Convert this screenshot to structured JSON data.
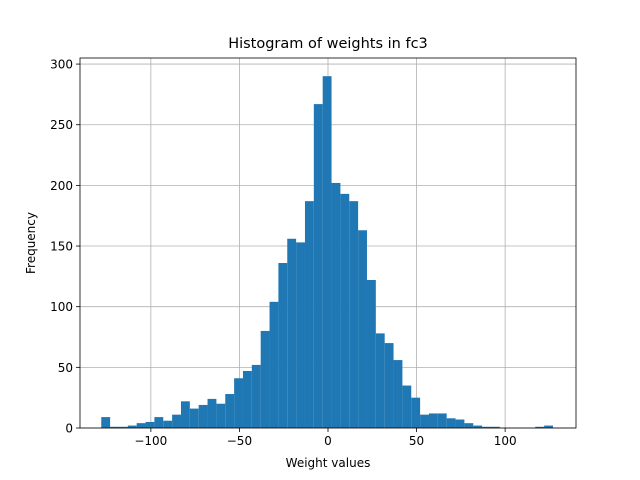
{
  "chart_data": {
    "type": "bar",
    "title": "Histogram of weights in fc3",
    "xlabel": "Weight values",
    "ylabel": "Frequency",
    "xlim": [
      -140,
      140
    ],
    "ylim": [
      0,
      305
    ],
    "xticks": [
      -100,
      -50,
      0,
      50,
      100
    ],
    "xtick_labels": [
      "−100",
      "−50",
      "0",
      "50",
      "100"
    ],
    "yticks": [
      0,
      50,
      100,
      150,
      200,
      250,
      300
    ],
    "ytick_labels": [
      "0",
      "50",
      "100",
      "150",
      "200",
      "250",
      "300"
    ],
    "grid": true,
    "bar_color": "#1f77b4",
    "bin_edges": [
      -128,
      -123,
      -118,
      -113,
      -108,
      -103,
      -98,
      -93,
      -88,
      -83,
      -78,
      -73,
      -68,
      -63,
      -58,
      -53,
      -48,
      -43,
      -38,
      -33,
      -28,
      -23,
      -18,
      -13,
      -8,
      -3,
      2,
      7,
      12,
      17,
      22,
      27,
      32,
      37,
      42,
      47,
      52,
      57,
      62,
      67,
      72,
      77,
      82,
      87,
      92,
      97,
      102,
      107,
      112,
      117,
      122,
      127
    ],
    "values": [
      9,
      1,
      1,
      2,
      4,
      5,
      9,
      6,
      11,
      22,
      16,
      19,
      24,
      20,
      28,
      41,
      47,
      52,
      80,
      104,
      136,
      156,
      153,
      187,
      267,
      290,
      202,
      193,
      187,
      163,
      122,
      78,
      70,
      56,
      35,
      25,
      11,
      12,
      12,
      8,
      7,
      4,
      2,
      1,
      1,
      0,
      0,
      0,
      0,
      1,
      2
    ]
  }
}
